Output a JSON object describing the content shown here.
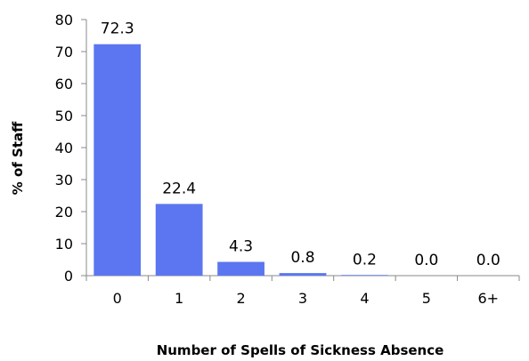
{
  "chart_data": {
    "type": "bar",
    "categories": [
      "0",
      "1",
      "2",
      "3",
      "4",
      "5",
      "6+"
    ],
    "values": [
      72.3,
      22.4,
      4.3,
      0.8,
      0.2,
      0.0,
      0.0
    ],
    "data_labels": [
      "72.3",
      "22.4",
      "4.3",
      "0.8",
      "0.2",
      "0.0",
      "0.0"
    ],
    "xlabel": "Number of Spells of Sickness Absence",
    "ylabel": "% of Staff",
    "ylim": [
      0,
      80
    ],
    "yticks": [
      0,
      10,
      20,
      30,
      40,
      50,
      60,
      70,
      80
    ],
    "grid": false,
    "legend": "none",
    "bar_color": "#5b76f0"
  }
}
